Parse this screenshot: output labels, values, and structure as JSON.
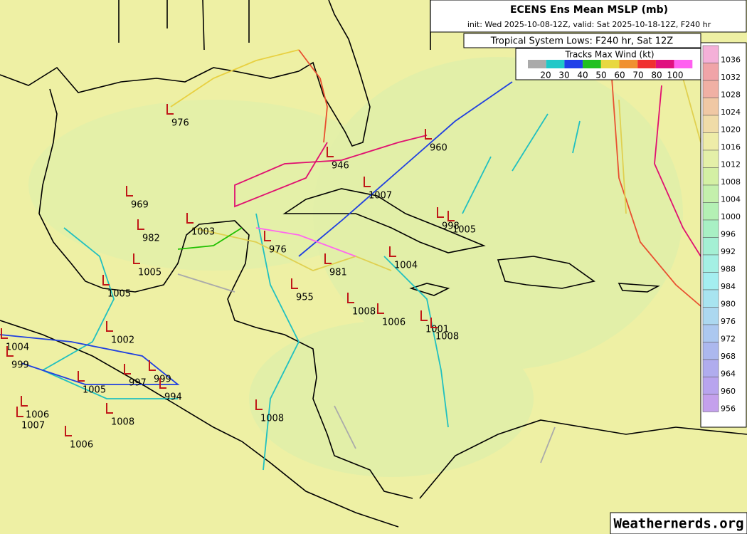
{
  "header": {
    "title": "ECENS Ens Mean MSLP (mb)",
    "subtitle": "init: Wed 2025-10-08-12Z, valid: Sat 2025-10-18-12Z, F240 hr"
  },
  "lows_title": "Tropical System Lows: F240 hr, Sat 12Z",
  "wind_legend": {
    "title": "Tracks Max Wind (kt)",
    "labels": [
      20,
      30,
      40,
      50,
      60,
      70,
      80,
      100
    ]
  },
  "pressure_scale": [
    1036,
    1032,
    1028,
    1024,
    1020,
    1016,
    1012,
    1008,
    1004,
    1000,
    996,
    992,
    988,
    984,
    980,
    976,
    972,
    968,
    964,
    960,
    956
  ],
  "lows": [
    976,
    946,
    960,
    1007,
    998,
    1005,
    969,
    982,
    1003,
    976,
    1004,
    981,
    1005,
    1005,
    955,
    1008,
    1006,
    1001,
    1008,
    1002,
    1004,
    999,
    997,
    999,
    1005,
    994,
    1006,
    1008,
    1007,
    1008,
    1006
  ],
  "watermark": "Weathernerds.org"
}
